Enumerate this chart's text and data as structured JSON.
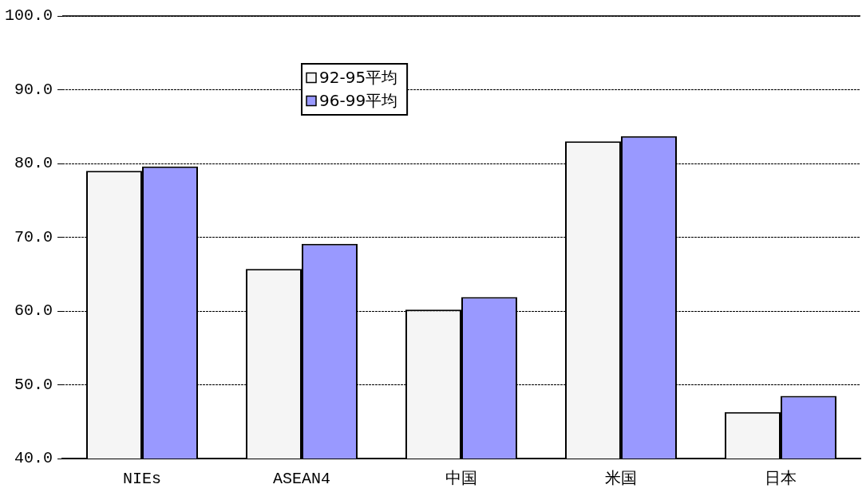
{
  "chart_data": {
    "type": "bar",
    "categories": [
      "NIEs",
      "ASEAN4",
      "中国",
      "米国",
      "日本"
    ],
    "series": [
      {
        "name": "92-95平均",
        "color": "#f5f5f5",
        "values": [
          79.0,
          65.7,
          60.2,
          83.0,
          46.3
        ]
      },
      {
        "name": "96-99平均",
        "color": "#9999ff",
        "values": [
          79.6,
          69.1,
          61.9,
          83.7,
          48.5
        ]
      }
    ],
    "ylim": [
      40,
      100
    ],
    "yticks": [
      {
        "value": 40,
        "label": "40.0"
      },
      {
        "value": 50,
        "label": "50.0"
      },
      {
        "value": 60,
        "label": "60.0"
      },
      {
        "value": 70,
        "label": "70.0"
      },
      {
        "value": 80,
        "label": "80.0"
      },
      {
        "value": 90,
        "label": "90.0"
      },
      {
        "value": 100,
        "label": "100.0"
      }
    ],
    "grid": "y",
    "legend": "top left"
  }
}
